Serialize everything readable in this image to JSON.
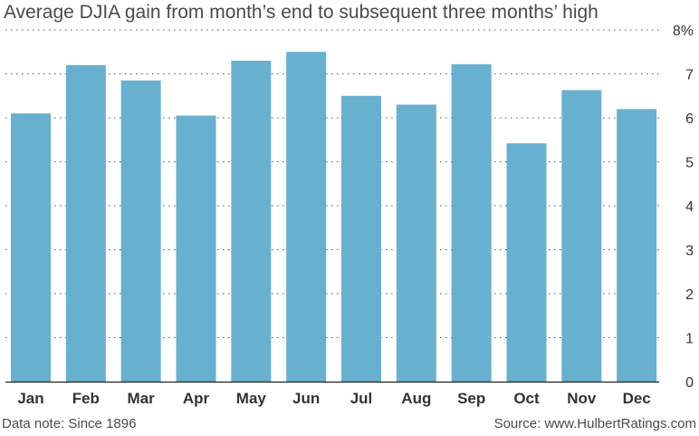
{
  "chart_data": {
    "type": "bar",
    "title": "Average DJIA gain from month’s end to subsequent three months’ high",
    "xlabel": "",
    "ylabel": "",
    "categories": [
      "Jan",
      "Feb",
      "Mar",
      "Apr",
      "May",
      "Jun",
      "Jul",
      "Aug",
      "Sep",
      "Oct",
      "Nov",
      "Dec"
    ],
    "values": [
      6.1,
      7.2,
      6.85,
      6.05,
      7.3,
      7.5,
      6.5,
      6.3,
      7.22,
      5.42,
      6.63,
      6.2
    ],
    "ylim": [
      0,
      8
    ],
    "yticks": [
      "0",
      "1",
      "2",
      "3",
      "4",
      "5",
      "6",
      "7",
      "8%"
    ],
    "grid": "horizontal dotted",
    "legend": "none",
    "bar_color": "#67b0cf"
  },
  "footer": {
    "note": "Data note: Since 1896",
    "source": "Source: www.HulbertRatings.com"
  }
}
